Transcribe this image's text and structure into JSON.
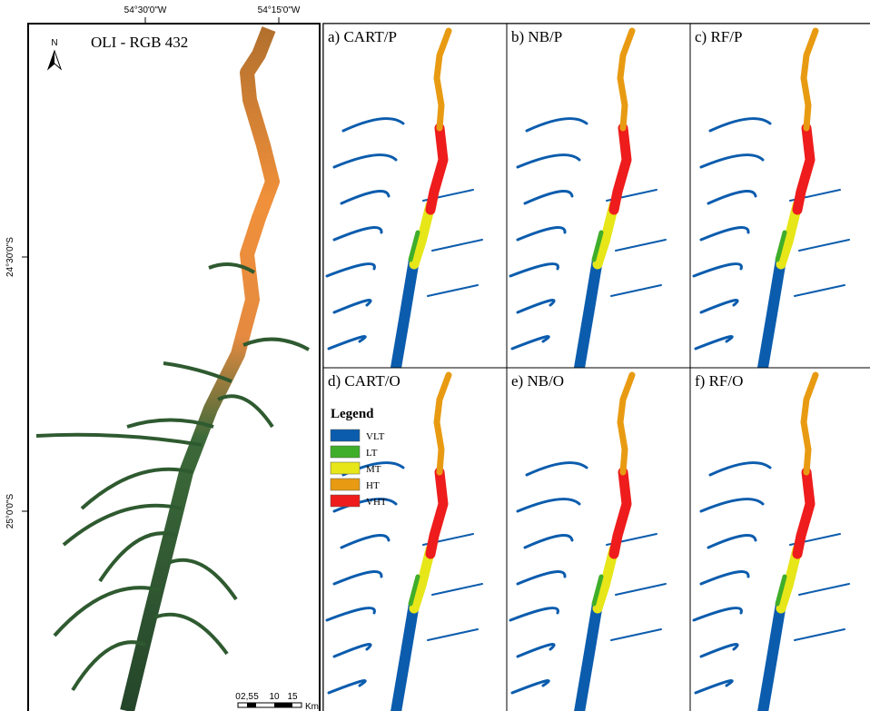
{
  "coordinates": {
    "top": [
      "54°30'0\"W",
      "54°15'0\"W"
    ],
    "left": [
      "24°30'0\"S",
      "25°0'0\"S"
    ]
  },
  "main_panel": {
    "north": "N",
    "title": "OLI - RGB 432"
  },
  "panels": [
    "a) CART/P",
    "b) NB/P",
    "c) RF/P",
    "d) CART/O",
    "e) NB/O",
    "f) RF/O"
  ],
  "legend": {
    "title": "Legend",
    "items": [
      {
        "label": "VLT",
        "color": "#0b5cad"
      },
      {
        "label": "LT",
        "color": "#3fae2a"
      },
      {
        "label": "MT",
        "color": "#e6e619"
      },
      {
        "label": "HT",
        "color": "#e89b12"
      },
      {
        "label": "VHT",
        "color": "#ee1c1c"
      }
    ]
  },
  "scale_bar": {
    "ticks": [
      "0",
      "2,5",
      "5",
      "10",
      "15"
    ],
    "unit": "Km"
  }
}
